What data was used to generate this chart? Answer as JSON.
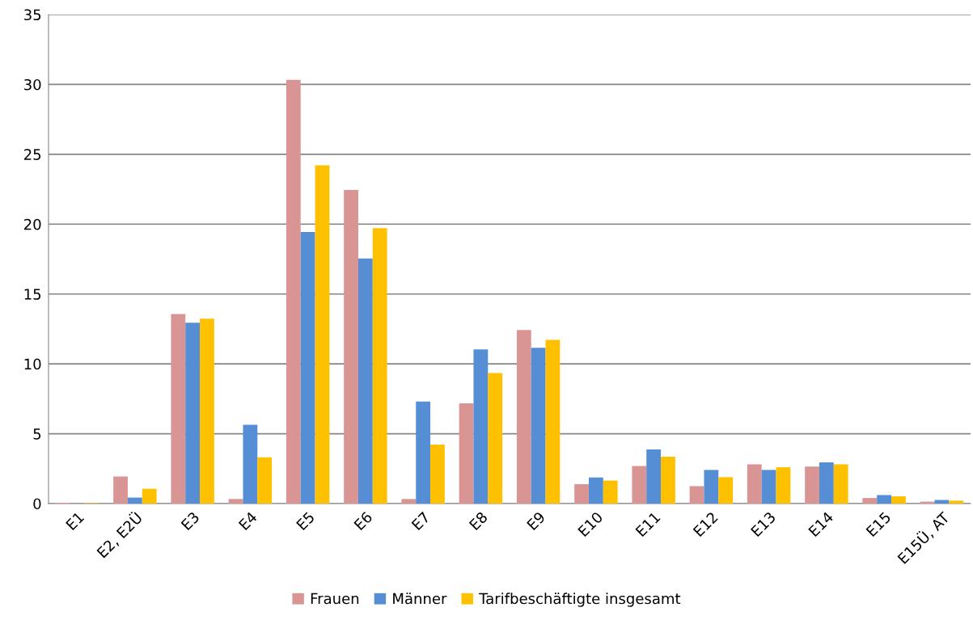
{
  "chart_data": {
    "type": "bar",
    "categories": [
      "E1",
      "E2, E2Ü",
      "E3",
      "E4",
      "E5",
      "E6",
      "E7",
      "E8",
      "E9",
      "E10",
      "E11",
      "E12",
      "E13",
      "E14",
      "E15",
      "E15Ü, AT"
    ],
    "series": [
      {
        "name": "Frauen",
        "color": "#d99594",
        "values": [
          0.05,
          1.94,
          13.56,
          0.33,
          30.33,
          22.44,
          0.33,
          7.18,
          12.42,
          1.39,
          2.69,
          1.25,
          2.81,
          2.65,
          0.4,
          0.14
        ]
      },
      {
        "name": "Männer",
        "color": "#558ed5",
        "values": [
          0,
          0.43,
          12.94,
          5.64,
          19.44,
          17.55,
          7.3,
          11.03,
          11.15,
          1.87,
          3.87,
          2.41,
          2.41,
          2.95,
          0.61,
          0.26
        ]
      },
      {
        "name": "Tarifbeschäftigte insgesamt",
        "color": "#ffc000",
        "values": [
          0.03,
          1.06,
          13.23,
          3.31,
          24.21,
          19.72,
          4.23,
          9.35,
          11.71,
          1.65,
          3.35,
          1.89,
          2.6,
          2.81,
          0.52,
          0.21
        ]
      }
    ],
    "ylim": [
      0,
      35
    ],
    "yticks": [
      0,
      5,
      10,
      15,
      20,
      25,
      30,
      35
    ],
    "grid": "y",
    "legend": "bottom"
  }
}
